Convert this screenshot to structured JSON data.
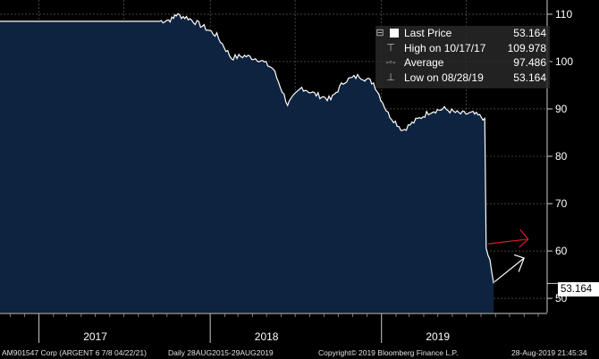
{
  "chart_data": {
    "type": "area",
    "y_ticks": [
      50,
      60,
      70,
      80,
      90,
      100,
      110
    ],
    "x_labels": [
      "2017",
      "2018",
      "2019"
    ],
    "ylim": [
      47,
      113
    ],
    "grid": true,
    "series": [
      {
        "name": "Last Price",
        "points": [
          [
            "2017-09",
            108.5
          ],
          [
            "2017-10",
            109.0
          ],
          [
            "2017-10-17",
            109.978
          ],
          [
            "2017-11",
            109.2
          ],
          [
            "2017-12",
            107.5
          ],
          [
            "2018-01",
            105.5
          ],
          [
            "2018-02",
            100.8
          ],
          [
            "2018-03",
            101.2
          ],
          [
            "2018-04",
            100.5
          ],
          [
            "2018-05",
            98.5
          ],
          [
            "2018-06",
            91.0
          ],
          [
            "2018-07",
            94.5
          ],
          [
            "2018-08",
            93.0
          ],
          [
            "2018-09",
            92.0
          ],
          [
            "2018-10",
            96.0
          ],
          [
            "2018-11",
            97.0
          ],
          [
            "2018-12",
            95.5
          ],
          [
            "2019-01",
            89.0
          ],
          [
            "2019-02",
            85.5
          ],
          [
            "2019-03",
            87.5
          ],
          [
            "2019-04",
            89.5
          ],
          [
            "2019-05",
            90.0
          ],
          [
            "2019-06",
            89.0
          ],
          [
            "2019-07",
            89.0
          ],
          [
            "2019-08-09",
            88.0
          ],
          [
            "2019-08-12",
            60.0
          ],
          [
            "2019-08-20",
            58.0
          ],
          [
            "2019-08-28",
            53.164
          ]
        ]
      }
    ]
  },
  "legend": {
    "last_label": "Last Price",
    "last_value": "53.164",
    "high_label": "High on 10/17/17",
    "high_value": "109.978",
    "avg_label": "Average",
    "avg_value": "97.486",
    "low_label": "Low on 08/28/19",
    "low_value": "53.164"
  },
  "last_price_tag": "53.164",
  "footer": {
    "security": "AM901547 Corp (ARGENT 6 7/8 04/22/21)",
    "range": "Daily 28AUG2015-29AUG2019",
    "copyright": "Copyright© 2019 Bloomberg Finance L.P.",
    "timestamp": "28-Aug-2019 21:45:34"
  },
  "colors": {
    "area": "#0d2340",
    "line": "#ffffff",
    "grid": "#6b6b6b",
    "red_arrow": "#d42020",
    "white_arrow": "#ffffff"
  }
}
